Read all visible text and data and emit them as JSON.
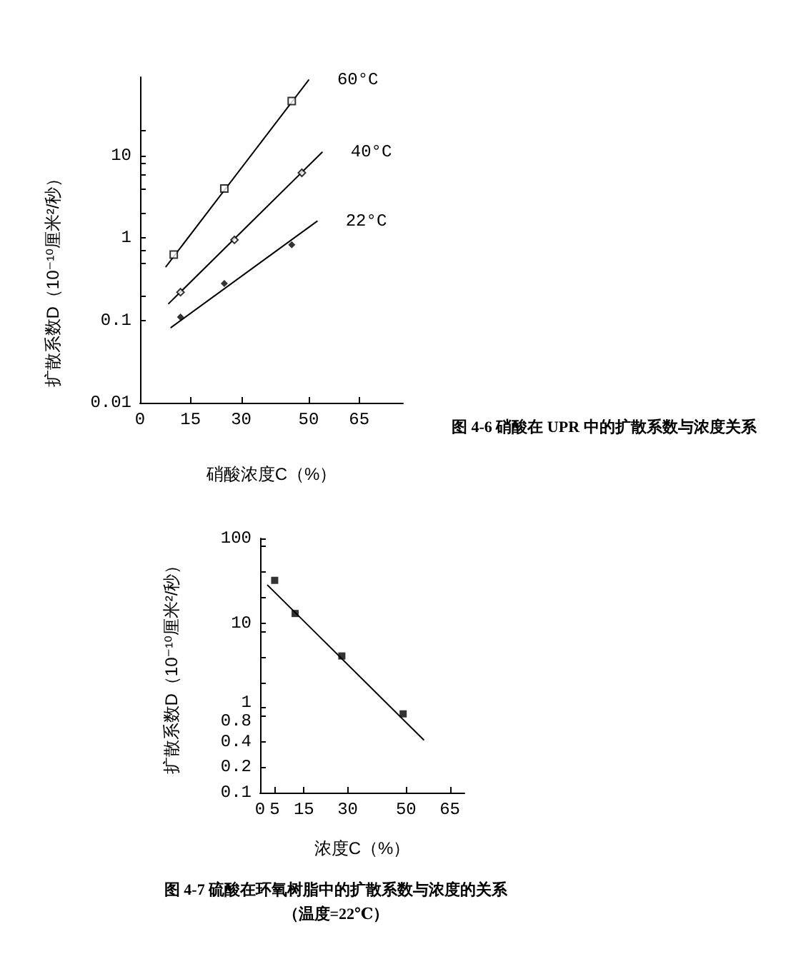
{
  "chart_data": [
    {
      "type": "scatter",
      "annotations": [
        "图 4-6 硝酸在 UPR 中的扩散系数与浓度关系"
      ],
      "xlabel": "硝酸浓度C（%）",
      "ylabel": "扩散系数D（10⁻¹⁰厘米²/秒）",
      "log": true,
      "xlim": [
        0,
        78
      ],
      "xticks": [
        0,
        15,
        30,
        50,
        65
      ],
      "ylim": [
        0.01,
        90
      ],
      "yticks": [
        0.01,
        0.1,
        {
          "value": 0.2,
          "label": null
        },
        {
          "value": 0.5,
          "label": null
        },
        {
          "value": 0.7,
          "label": null
        },
        1,
        {
          "value": 2,
          "label": null
        },
        {
          "value": 4,
          "label": null
        },
        {
          "value": 6,
          "label": null
        },
        {
          "value": 8,
          "label": null
        },
        10,
        {
          "value": 20,
          "label": null
        }
      ],
      "series": [
        {
          "type": "scatter",
          "marker": "square",
          "color": "#000000",
          "x": [
            10,
            25,
            45
          ],
          "values": [
            0.63,
            4.0,
            46
          ]
        },
        {
          "type": "line",
          "name": "60°C",
          "marker": "none",
          "color": "#000000",
          "x": [
            7.7,
            50
          ],
          "values": [
            0.45,
            83
          ]
        },
        {
          "type": "scatter",
          "marker": "diamond",
          "color": "#000000",
          "x": [
            12,
            28,
            48
          ],
          "values": [
            0.22,
            0.95,
            6.2
          ]
        },
        {
          "type": "line",
          "name": "40°C",
          "marker": "none",
          "color": "#000000",
          "x": [
            8.5,
            54
          ],
          "values": [
            0.16,
            11
          ]
        },
        {
          "type": "scatter",
          "marker": "diamond",
          "color": "#000000",
          "x": [
            12,
            25,
            45
          ],
          "values": [
            0.11,
            0.28,
            0.83
          ]
        },
        {
          "type": "line",
          "name": "22°C",
          "marker": "none",
          "color": "#000000",
          "x": [
            9.2,
            52.5
          ],
          "values": [
            0.082,
            1.6
          ]
        }
      ]
    },
    {
      "type": "scatter",
      "title": "图 4-7 硫酸在环氧树脂中的扩散系数与浓度的关系",
      "subtitle": "（温度=22℃）",
      "xlabel": "浓度C（%）",
      "ylabel": "扩散系数D（10⁻¹⁰厘米²/秒）",
      "log": true,
      "xlim": [
        0,
        70
      ],
      "xticks": [
        0,
        5,
        15,
        30,
        50,
        65
      ],
      "ylim": [
        0.1,
        100
      ],
      "yticks": [
        0.1,
        0.2,
        0.4,
        0.8,
        1,
        {
          "value": 2,
          "label": null
        },
        {
          "value": 4,
          "label": null
        },
        {
          "value": 8,
          "label": null
        },
        10,
        {
          "value": 20,
          "label": null
        },
        {
          "value": 40,
          "label": null
        },
        {
          "value": 80,
          "label": null
        },
        100
      ],
      "series": [
        {
          "type": "scatter",
          "marker": "square",
          "color": "#000000",
          "x": [
            5,
            12,
            28,
            49
          ],
          "values": [
            32,
            13,
            4.1,
            0.85
          ]
        },
        {
          "type": "line",
          "marker": "none",
          "color": "#000000",
          "x": [
            2.6,
            56
          ],
          "values": [
            28,
            0.42
          ]
        }
      ]
    }
  ]
}
